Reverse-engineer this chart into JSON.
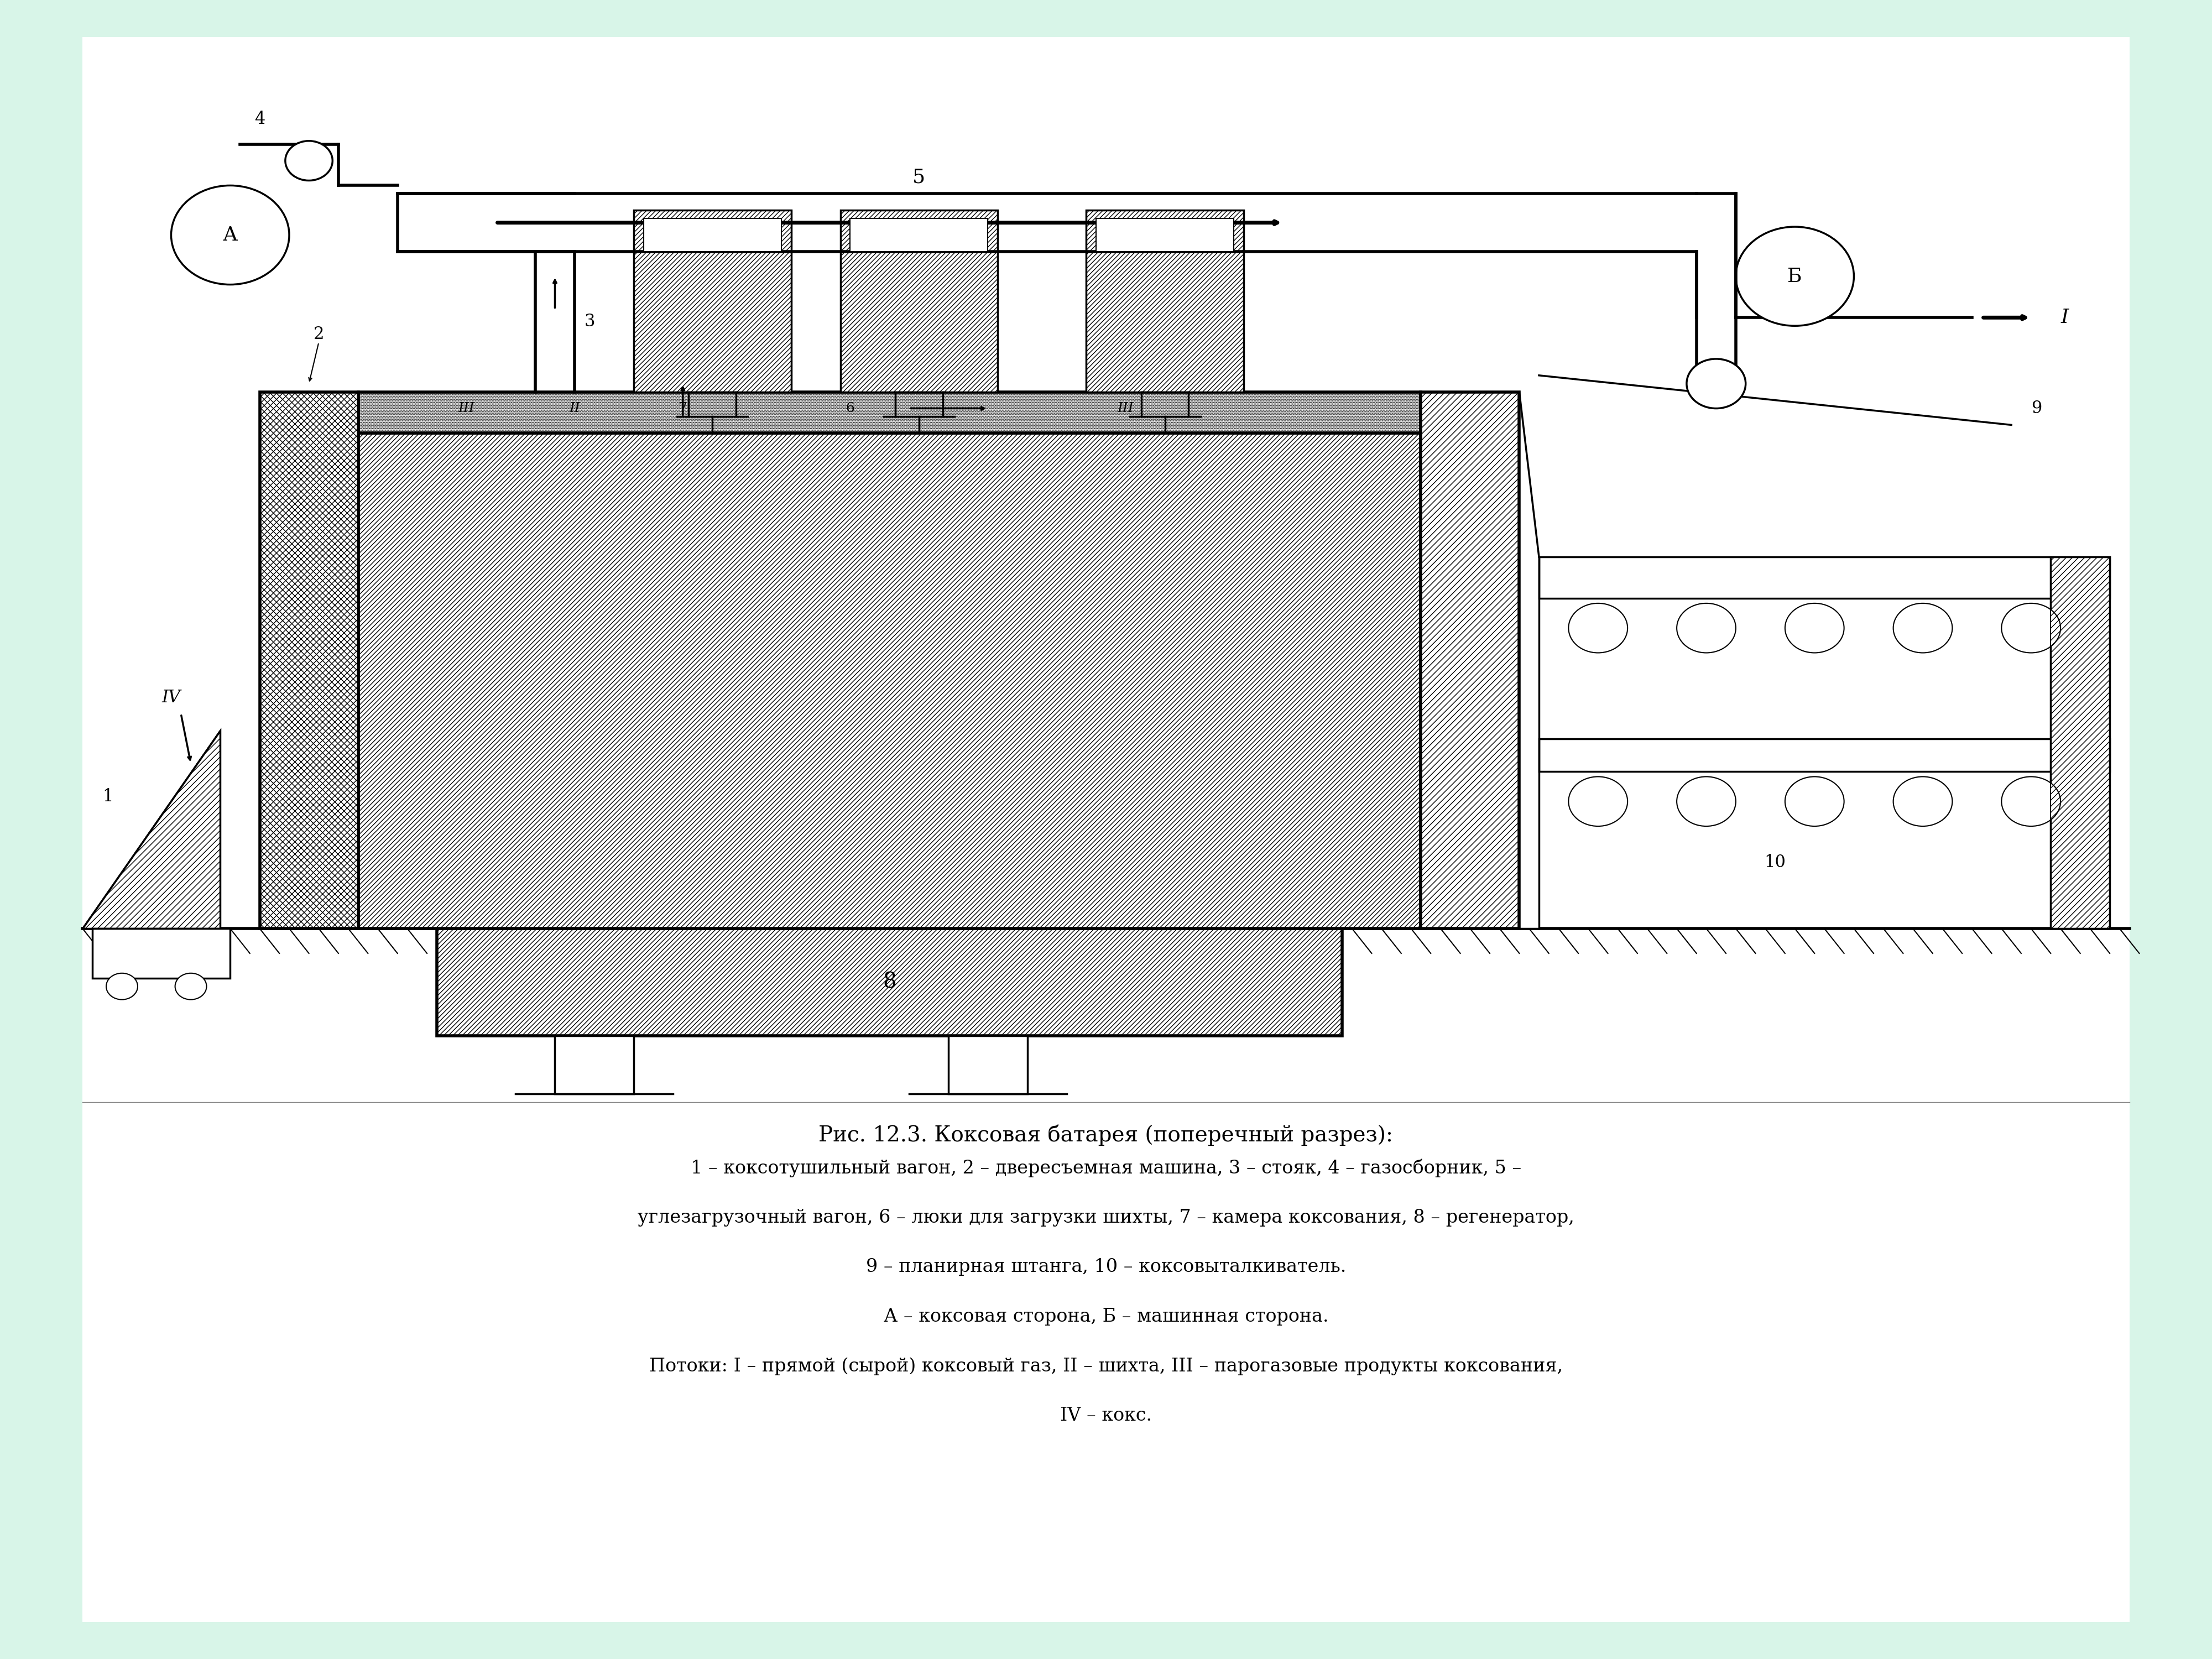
{
  "bg_color": "#d8f5e8",
  "panel_color": "#ffffff",
  "title_text": "Рис. 12.3. Коксовая батарея (поперечный разрез):",
  "caption_lines": [
    "1 – коксотушильный вагон, 2 – двересъемная машина, 3 – стояк, 4 – газосборник, 5 –",
    "углезагрузочный вагон, 6 – люки для загрузки шихты, 7 – камера коксования, 8 – регенератор,",
    "9 – планирная штанга, 10 – коксовыталкиватель.",
    "А – коксовая сторона, Б – машинная сторона.",
    "Потоки: I – прямой (сырой) коксовый газ, II – шихта, III – парогазовые продукты коксования,",
    "IV – кокс."
  ],
  "lc": "#000000"
}
